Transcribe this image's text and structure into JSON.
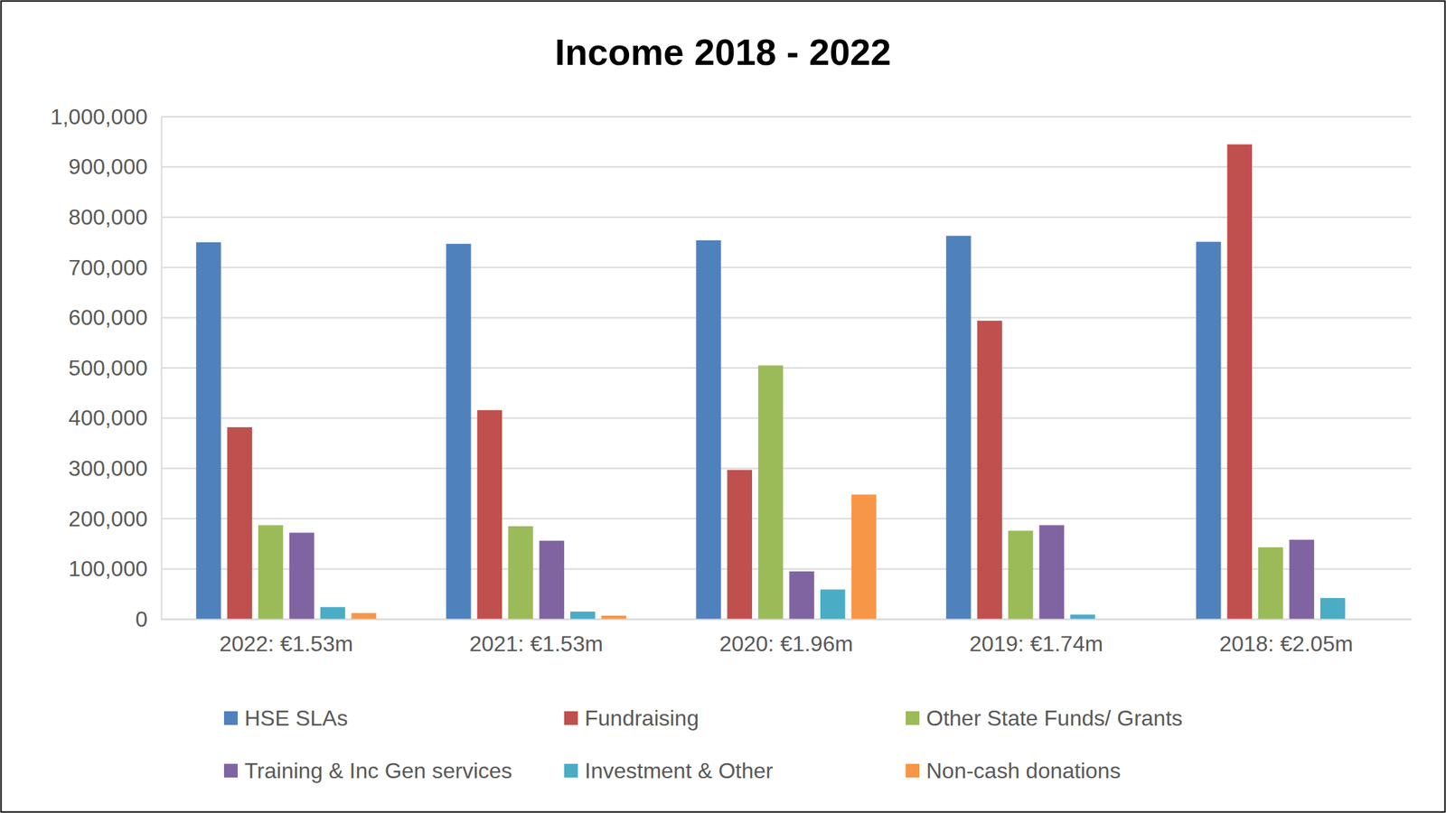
{
  "chart_data": {
    "type": "bar",
    "title": "Income 2018 - 2022",
    "categories": [
      "2022: €1.53m",
      "2021: €1.53m",
      "2020: €1.96m",
      "2019: €1.74m",
      "2018: €2.05m"
    ],
    "series": [
      {
        "name": "HSE SLAs",
        "color": "#4f81bd",
        "values": [
          750000,
          747000,
          754000,
          763000,
          751000
        ]
      },
      {
        "name": "Fundraising",
        "color": "#c0504d",
        "values": [
          382000,
          416000,
          297000,
          594000,
          945000
        ]
      },
      {
        "name": "Other State Funds/ Grants",
        "color": "#9bbb59",
        "values": [
          187000,
          185000,
          505000,
          176000,
          143000
        ]
      },
      {
        "name": "Training & Inc Gen services",
        "color": "#8064a2",
        "values": [
          172000,
          156000,
          95000,
          187000,
          158000
        ]
      },
      {
        "name": "Investment & Other",
        "color": "#4bacc6",
        "values": [
          24000,
          15000,
          59000,
          9000,
          42000
        ]
      },
      {
        "name": "Non-cash donations",
        "color": "#f79646",
        "values": [
          12000,
          7000,
          248000,
          0,
          0
        ]
      }
    ],
    "ylim": [
      0,
      1000000
    ],
    "yticks": [
      0,
      {
        "value": 100000,
        "label": "100,000"
      },
      {
        "value": 200000,
        "label": "200,000"
      },
      {
        "value": 300000,
        "label": "300,000"
      },
      {
        "value": 400000,
        "label": "400,000"
      },
      {
        "value": 500000,
        "label": "500,000"
      },
      {
        "value": 600000,
        "label": "600,000"
      },
      {
        "value": 700000,
        "label": "700,000"
      },
      {
        "value": 800000,
        "label": "800,000"
      },
      {
        "value": 900000,
        "label": "900,000"
      },
      {
        "value": 1000000,
        "label": "1,000,000"
      }
    ],
    "grid": true,
    "legend": "bottom"
  }
}
